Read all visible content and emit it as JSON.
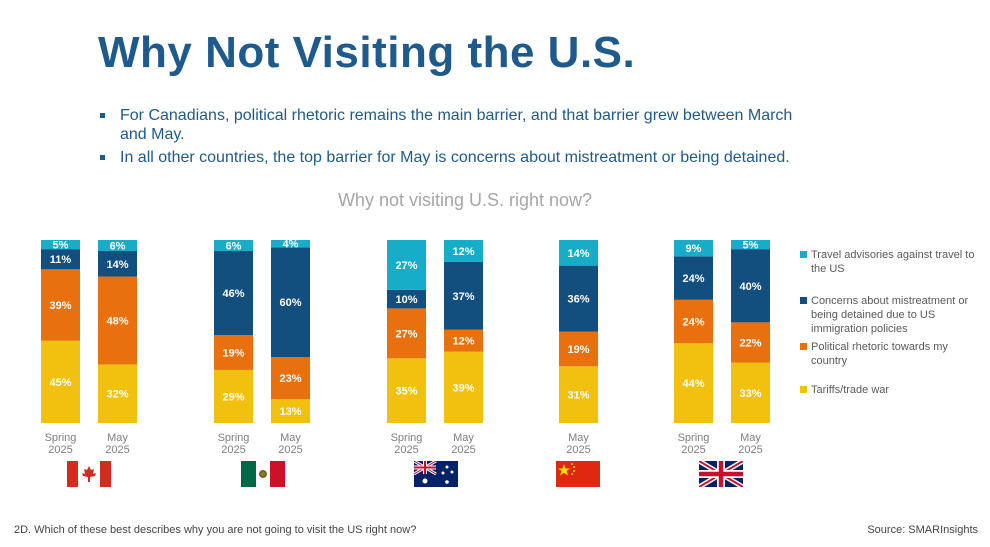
{
  "title": "Why Not Visiting the U.S.",
  "bullets": [
    "For Canadians, political rhetoric remains the main barrier, and that barrier grew between March and May.",
    "In all other countries, the top barrier for May is concerns about mistreatment or being detained."
  ],
  "footnote": "2D. Which of these best describes why you are not going to visit the US right now?",
  "source": "Source: SMARInsights",
  "chart_data": {
    "type": "bar",
    "stacked": true,
    "title": "Why not visiting U.S. right now?",
    "ylim": [
      0,
      100
    ],
    "grid": false,
    "legend_position": "right",
    "series": [
      {
        "name": "Tariffs/trade war",
        "color": "#f2c00e"
      },
      {
        "name": "Political rhetoric towards my country",
        "color": "#e8700e"
      },
      {
        "name": "Concerns about mistreatment or being detained due to US immigration policies",
        "color": "#124e7e"
      },
      {
        "name": "Travel advisories against travel to the US",
        "color": "#17adc8"
      }
    ],
    "groups": [
      {
        "flag": "canada",
        "bars": [
          {
            "label": "Spring 2025",
            "values": [
              45,
              39,
              11,
              5
            ]
          },
          {
            "label": "May 2025",
            "values": [
              32,
              48,
              14,
              6
            ]
          }
        ]
      },
      {
        "flag": "mexico",
        "bars": [
          {
            "label": "Spring 2025",
            "values": [
              29,
              19,
              46,
              6
            ]
          },
          {
            "label": "May 2025",
            "values": [
              13,
              23,
              60,
              4
            ]
          }
        ]
      },
      {
        "flag": "australia",
        "bars": [
          {
            "label": "Spring 2025",
            "values": [
              35,
              27,
              10,
              27
            ]
          },
          {
            "label": "May 2025",
            "values": [
              39,
              12,
              37,
              12
            ]
          }
        ]
      },
      {
        "flag": "china",
        "bars": [
          {
            "label": "May 2025",
            "values": [
              31,
              19,
              36,
              14
            ]
          }
        ]
      },
      {
        "flag": "uk",
        "bars": [
          {
            "label": "Spring 2025",
            "values": [
              44,
              24,
              24,
              9
            ]
          },
          {
            "label": "May 2025",
            "values": [
              33,
              22,
              40,
              5
            ]
          }
        ]
      }
    ]
  }
}
